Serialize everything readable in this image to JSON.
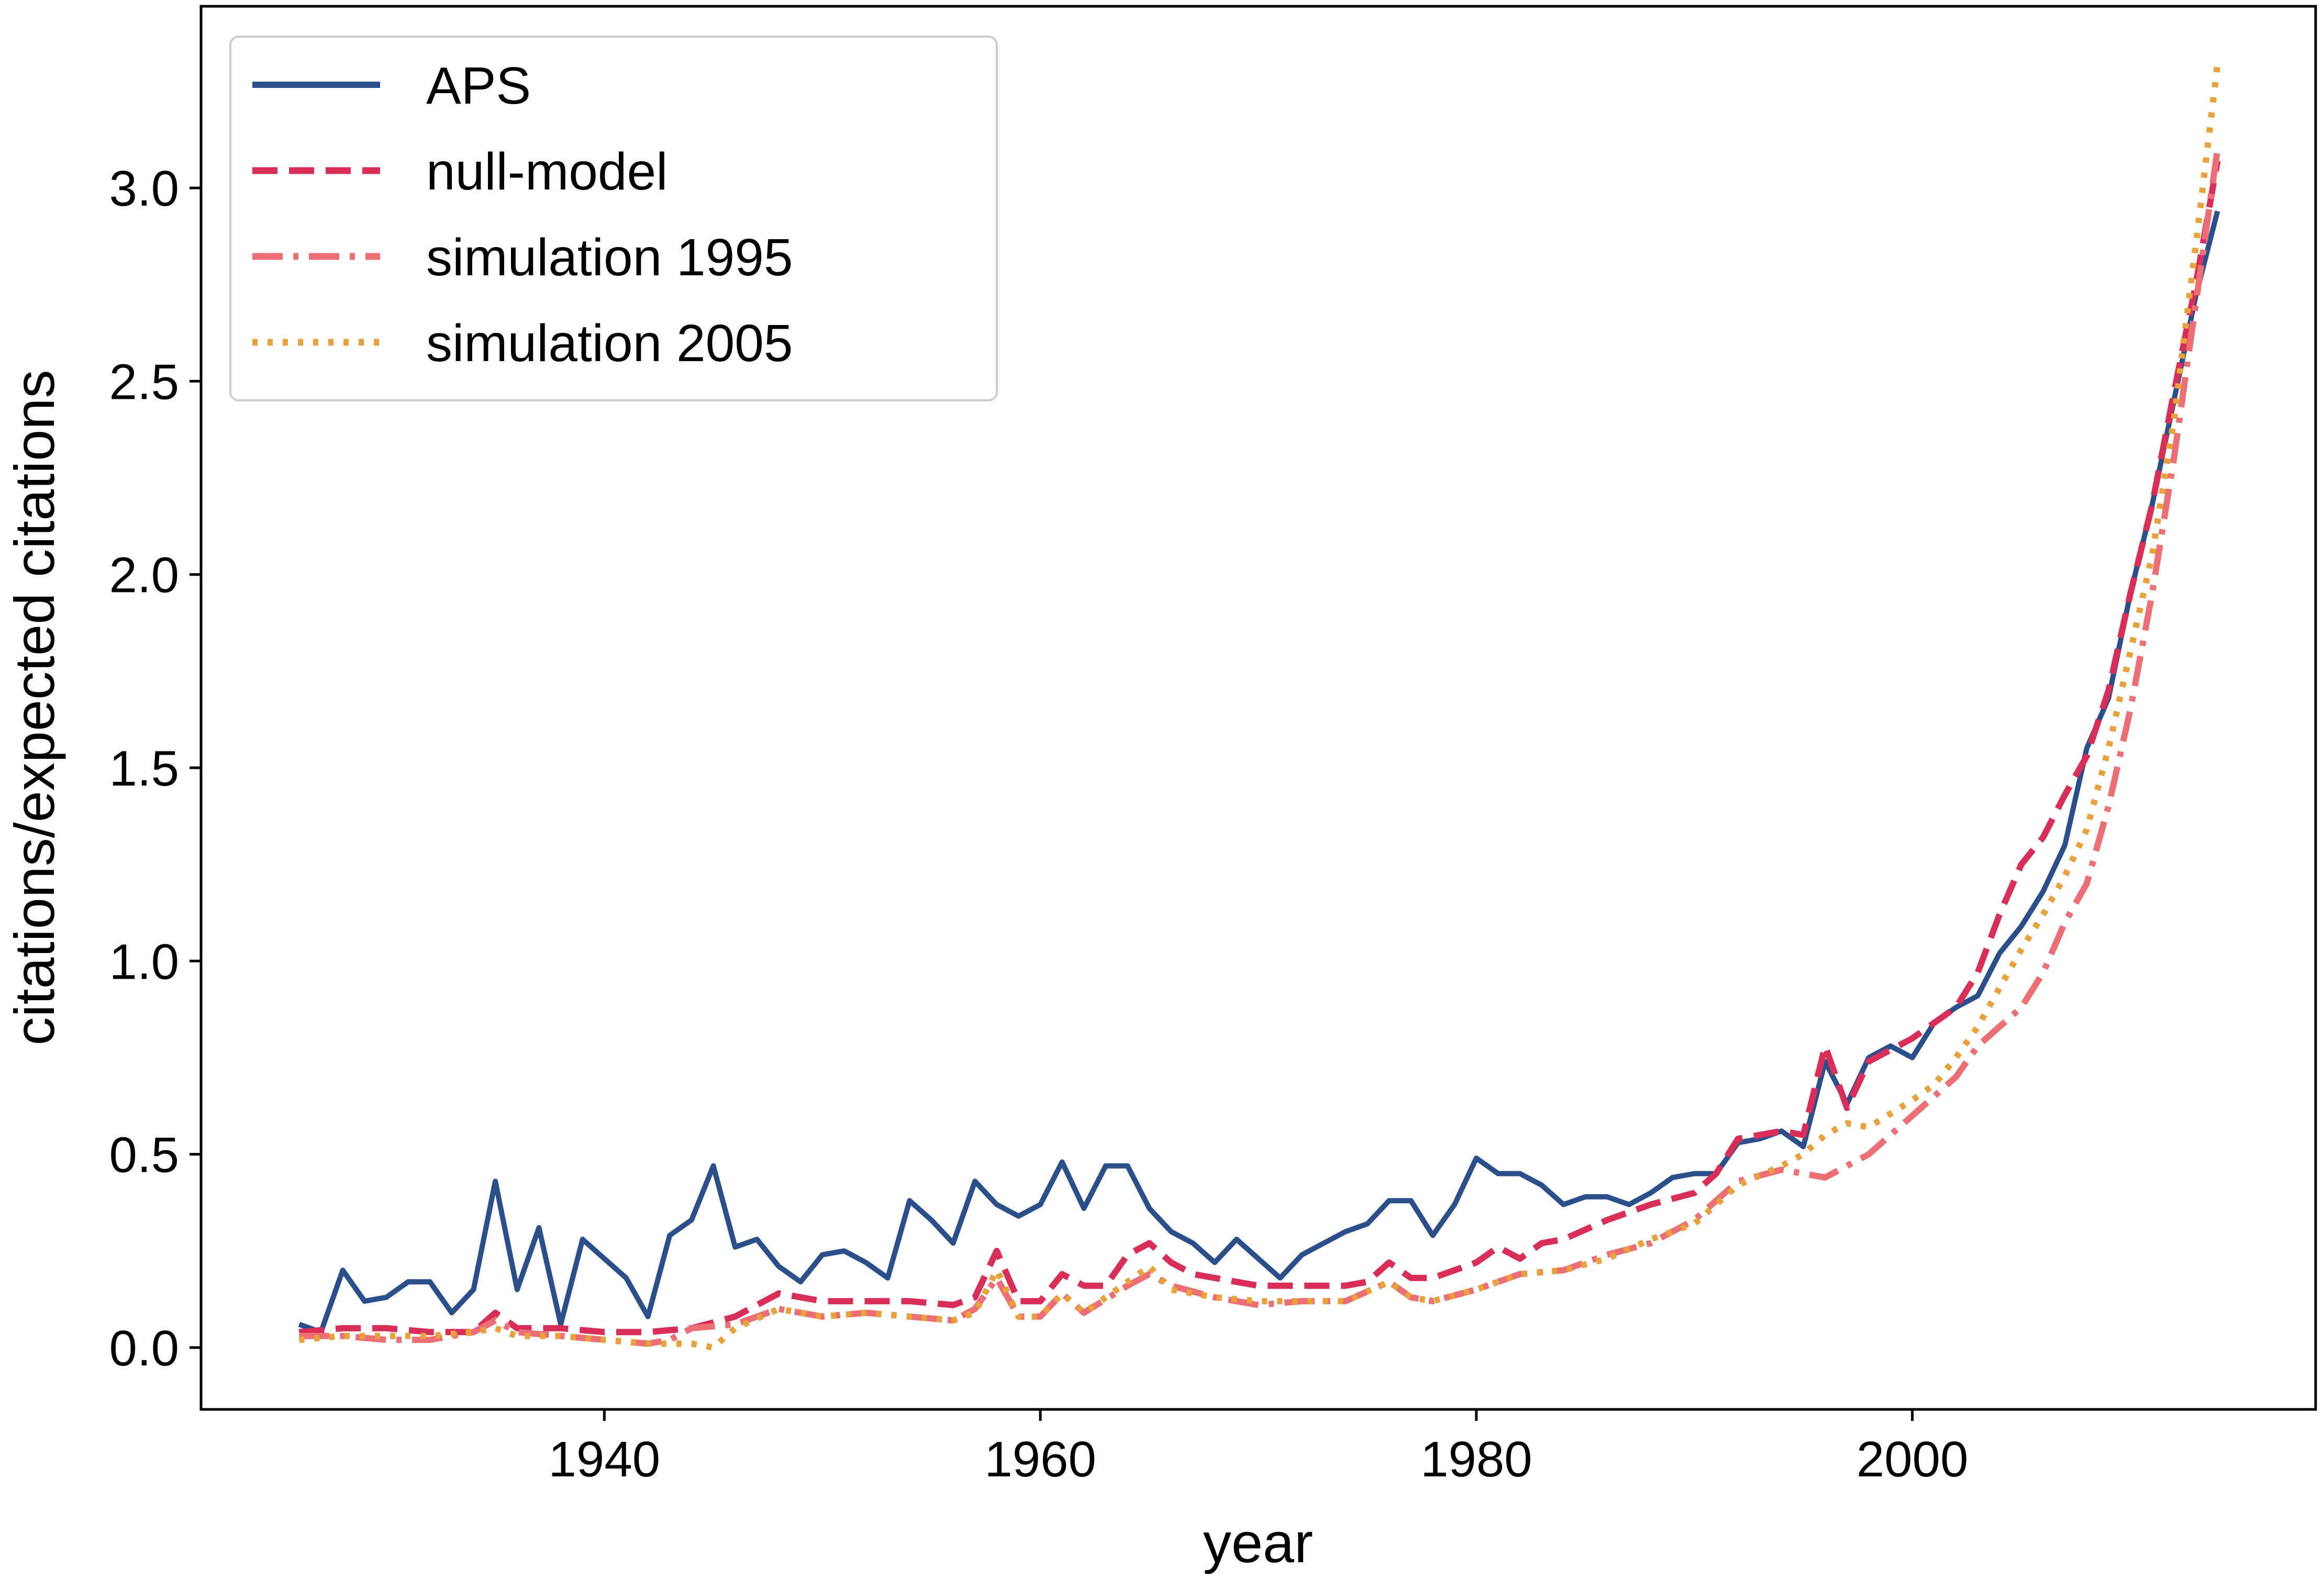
{
  "chart_data": {
    "type": "line",
    "xlabel": "year",
    "ylabel": "citations/expected citations",
    "xlim": [
      1921.5,
      2018.5
    ],
    "ylim": [
      -0.16,
      3.47
    ],
    "xticks": [
      1940,
      1960,
      1980,
      2000
    ],
    "yticks": [
      0.0,
      0.5,
      1.0,
      1.5,
      2.0,
      2.5,
      3.0
    ],
    "ytick_labels": [
      "0.0",
      "0.5",
      "1.0",
      "1.5",
      "2.0",
      "2.5",
      "3.0"
    ],
    "legend_position": "top-left",
    "series": [
      {
        "name": "APS",
        "color": "#2b4f8a",
        "style": "solid",
        "x": [
          1926,
          1927,
          1928,
          1929,
          1930,
          1931,
          1932,
          1933,
          1934,
          1935,
          1936,
          1937,
          1938,
          1939,
          1940,
          1941,
          1942,
          1943,
          1944,
          1945,
          1946,
          1947,
          1948,
          1949,
          1950,
          1951,
          1952,
          1953,
          1954,
          1955,
          1956,
          1957,
          1958,
          1959,
          1960,
          1961,
          1962,
          1963,
          1964,
          1965,
          1966,
          1967,
          1968,
          1969,
          1970,
          1971,
          1972,
          1973,
          1974,
          1975,
          1976,
          1977,
          1978,
          1979,
          1980,
          1981,
          1982,
          1983,
          1984,
          1985,
          1986,
          1987,
          1988,
          1989,
          1990,
          1991,
          1992,
          1993,
          1994,
          1995,
          1996,
          1997,
          1998,
          1999,
          2000,
          2001,
          2002,
          2003,
          2004,
          2005,
          2006,
          2007,
          2008,
          2009,
          2010,
          2011,
          2012,
          2013,
          2014
        ],
        "y": [
          0.06,
          0.04,
          0.2,
          0.12,
          0.13,
          0.17,
          0.17,
          0.09,
          0.15,
          0.43,
          0.15,
          0.31,
          0.06,
          0.28,
          0.23,
          0.18,
          0.08,
          0.29,
          0.33,
          0.47,
          0.26,
          0.28,
          0.21,
          0.17,
          0.24,
          0.25,
          0.22,
          0.18,
          0.38,
          0.33,
          0.27,
          0.43,
          0.37,
          0.34,
          0.37,
          0.48,
          0.36,
          0.47,
          0.47,
          0.36,
          0.3,
          0.27,
          0.22,
          0.28,
          0.23,
          0.18,
          0.24,
          0.27,
          0.3,
          0.32,
          0.38,
          0.38,
          0.29,
          0.37,
          0.49,
          0.45,
          0.45,
          0.42,
          0.37,
          0.39,
          0.39,
          0.37,
          0.4,
          0.44,
          0.45,
          0.45,
          0.53,
          0.54,
          0.56,
          0.52,
          0.74,
          0.63,
          0.75,
          0.78,
          0.75,
          0.84,
          0.88,
          0.91,
          1.02,
          1.09,
          1.18,
          1.3,
          1.55,
          1.68,
          1.95,
          2.18,
          2.45,
          2.72,
          2.94
        ]
      },
      {
        "name": "null-model",
        "color": "#d92e57",
        "style": "dashed",
        "x": [
          1926,
          1928,
          1930,
          1932,
          1934,
          1935,
          1936,
          1938,
          1940,
          1942,
          1944,
          1946,
          1948,
          1950,
          1952,
          1954,
          1956,
          1957,
          1958,
          1959,
          1960,
          1961,
          1962,
          1963,
          1964,
          1965,
          1966,
          1967,
          1968,
          1970,
          1972,
          1974,
          1975,
          1976,
          1977,
          1978,
          1980,
          1981,
          1982,
          1983,
          1984,
          1986,
          1988,
          1990,
          1991,
          1992,
          1994,
          1995,
          1996,
          1997,
          1998,
          2000,
          2002,
          2003,
          2004,
          2005,
          2006,
          2007,
          2008,
          2009,
          2010,
          2011,
          2012,
          2013,
          2014
        ],
        "y": [
          0.04,
          0.05,
          0.05,
          0.04,
          0.04,
          0.09,
          0.05,
          0.05,
          0.04,
          0.04,
          0.05,
          0.08,
          0.14,
          0.12,
          0.12,
          0.12,
          0.11,
          0.13,
          0.25,
          0.12,
          0.12,
          0.19,
          0.16,
          0.16,
          0.24,
          0.27,
          0.22,
          0.19,
          0.18,
          0.16,
          0.16,
          0.16,
          0.17,
          0.22,
          0.18,
          0.18,
          0.22,
          0.26,
          0.23,
          0.27,
          0.28,
          0.33,
          0.37,
          0.4,
          0.45,
          0.54,
          0.56,
          0.55,
          0.78,
          0.62,
          0.74,
          0.8,
          0.88,
          0.97,
          1.12,
          1.25,
          1.32,
          1.43,
          1.53,
          1.7,
          1.95,
          2.18,
          2.47,
          2.75,
          3.07
        ]
      },
      {
        "name": "simulation 1995",
        "color": "#ec6f76",
        "style": "dashdot",
        "x": [
          1926,
          1928,
          1930,
          1932,
          1934,
          1935,
          1936,
          1938,
          1940,
          1942,
          1943,
          1944,
          1946,
          1948,
          1950,
          1952,
          1954,
          1956,
          1957,
          1958,
          1959,
          1960,
          1961,
          1962,
          1964,
          1965,
          1966,
          1968,
          1970,
          1972,
          1974,
          1976,
          1977,
          1978,
          1980,
          1982,
          1984,
          1986,
          1988,
          1990,
          1992,
          1994,
          1995,
          1996,
          1998,
          2000,
          2002,
          2003,
          2004,
          2005,
          2006,
          2007,
          2008,
          2009,
          2010,
          2011,
          2012,
          2013,
          2014
        ],
        "y": [
          0.03,
          0.03,
          0.02,
          0.02,
          0.04,
          0.07,
          0.04,
          0.03,
          0.02,
          0.01,
          0.02,
          0.05,
          0.06,
          0.1,
          0.08,
          0.09,
          0.08,
          0.07,
          0.1,
          0.18,
          0.08,
          0.08,
          0.14,
          0.09,
          0.16,
          0.19,
          0.16,
          0.13,
          0.11,
          0.12,
          0.12,
          0.17,
          0.13,
          0.12,
          0.15,
          0.19,
          0.2,
          0.24,
          0.27,
          0.33,
          0.43,
          0.46,
          0.45,
          0.44,
          0.5,
          0.6,
          0.7,
          0.78,
          0.83,
          0.88,
          0.97,
          1.1,
          1.2,
          1.4,
          1.65,
          1.95,
          2.3,
          2.7,
          3.1
        ]
      },
      {
        "name": "simulation 2005",
        "color": "#e9a23b",
        "style": "dotted",
        "x": [
          1926,
          1928,
          1930,
          1932,
          1934,
          1935,
          1936,
          1938,
          1940,
          1942,
          1944,
          1945,
          1946,
          1948,
          1950,
          1952,
          1954,
          1956,
          1957,
          1958,
          1959,
          1960,
          1961,
          1962,
          1964,
          1965,
          1966,
          1968,
          1970,
          1972,
          1974,
          1976,
          1977,
          1978,
          1980,
          1982,
          1984,
          1986,
          1988,
          1990,
          1992,
          1994,
          1995,
          1996,
          1997,
          1998,
          2000,
          2001,
          2002,
          2003,
          2004,
          2005,
          2006,
          2007,
          2008,
          2009,
          2010,
          2011,
          2012,
          2013,
          2014
        ],
        "y": [
          0.02,
          0.03,
          0.03,
          0.03,
          0.04,
          0.05,
          0.03,
          0.03,
          0.02,
          0.01,
          0.01,
          0.0,
          0.05,
          0.1,
          0.08,
          0.09,
          0.08,
          0.07,
          0.09,
          0.2,
          0.08,
          0.08,
          0.14,
          0.09,
          0.17,
          0.21,
          0.15,
          0.13,
          0.12,
          0.12,
          0.12,
          0.17,
          0.13,
          0.12,
          0.15,
          0.19,
          0.2,
          0.23,
          0.28,
          0.32,
          0.42,
          0.47,
          0.5,
          0.55,
          0.58,
          0.57,
          0.64,
          0.68,
          0.75,
          0.83,
          0.93,
          1.03,
          1.12,
          1.22,
          1.34,
          1.55,
          1.8,
          2.05,
          2.4,
          2.85,
          3.32
        ]
      }
    ]
  }
}
